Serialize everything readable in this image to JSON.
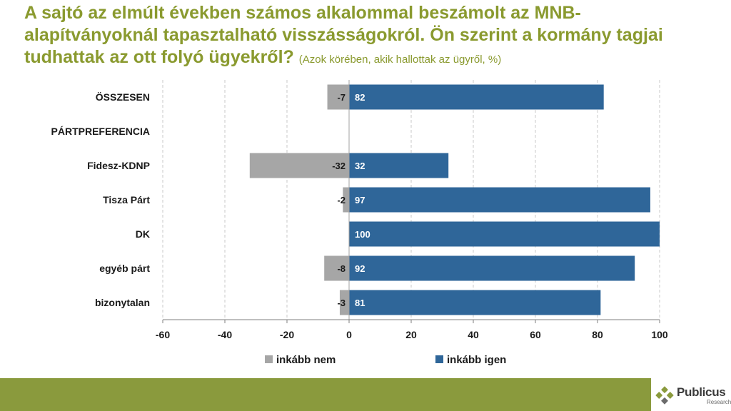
{
  "title": {
    "main": "A sajtó az elmúlt években számos alkalommal beszámolt az MNB-alapítványoknál tapasztalható visszásságokról. Ön szerint a kormány tagjai tudhattak az ott folyó ügyekről?",
    "subtitle": "(Azok körében, akik hallottak az ügyről, %)"
  },
  "chart_data": {
    "type": "bar",
    "orientation": "horizontal",
    "stacked": "diverging",
    "categories": [
      "ÖSSZESEN",
      "PÁRTPREFERENCIA",
      "Fidesz-KDNP",
      "Tisza Párt",
      "DK",
      "egyéb párt",
      "bizonytalan"
    ],
    "series": [
      {
        "name": "inkább nem",
        "color": "#a6a6a6",
        "values": [
          -7,
          null,
          -32,
          -2,
          null,
          -8,
          -3
        ]
      },
      {
        "name": "inkább igen",
        "color": "#2f6699",
        "values": [
          82,
          null,
          32,
          97,
          100,
          92,
          81
        ]
      }
    ],
    "xlim": [
      -60,
      100
    ],
    "xticks": [
      -60,
      -40,
      -20,
      0,
      20,
      40,
      60,
      80,
      100
    ],
    "xtick_labels": [
      "-60",
      "-40",
      "-20",
      "0",
      "20",
      "40",
      "60",
      "80",
      "100"
    ],
    "grid": "vertical dashed",
    "legend": "bottom",
    "xlabel": "",
    "ylabel": ""
  },
  "footer": {
    "brand": "Publicus",
    "brand_sub": "Research",
    "bar_color": "#8a9a3d"
  }
}
